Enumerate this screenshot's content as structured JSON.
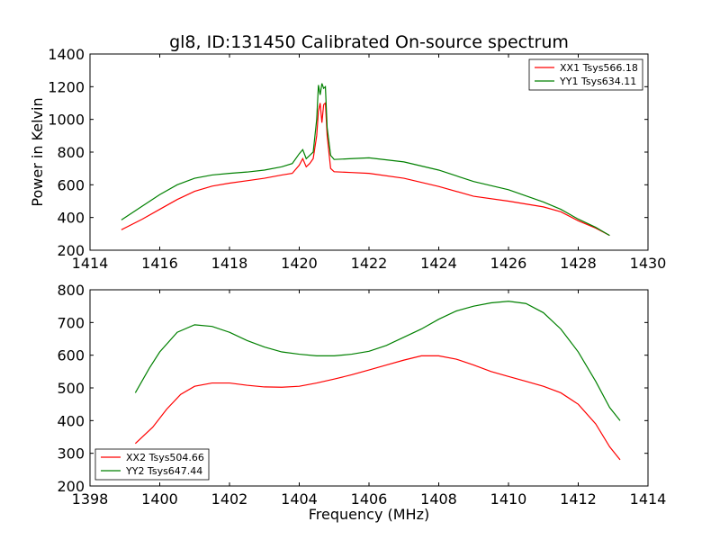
{
  "title": "gl8, ID:131450 Calibrated On-source spectrum",
  "colors": {
    "xx": "#ff0000",
    "yy": "#008000"
  },
  "chart_data": [
    {
      "type": "line",
      "ylabel": "Power in Kelvin",
      "xlabel": "",
      "xlim": [
        1414,
        1430
      ],
      "ylim": [
        200,
        1400
      ],
      "xticks": [
        1414,
        1416,
        1418,
        1420,
        1422,
        1424,
        1426,
        1428,
        1430
      ],
      "yticks": [
        200,
        400,
        600,
        800,
        1000,
        1200,
        1400
      ],
      "legend_position": "top-right",
      "series": [
        {
          "name": "XX1 Tsys566.18",
          "color": "#ff0000",
          "points": [
            [
              1414.9,
              325
            ],
            [
              1415.5,
              390
            ],
            [
              1416.0,
              450
            ],
            [
              1416.5,
              510
            ],
            [
              1417.0,
              560
            ],
            [
              1417.5,
              592
            ],
            [
              1418.0,
              610
            ],
            [
              1418.5,
              625
            ],
            [
              1419.0,
              640
            ],
            [
              1419.5,
              660
            ],
            [
              1419.8,
              670
            ],
            [
              1420.0,
              720
            ],
            [
              1420.1,
              760
            ],
            [
              1420.2,
              710
            ],
            [
              1420.3,
              730
            ],
            [
              1420.4,
              760
            ],
            [
              1420.5,
              900
            ],
            [
              1420.55,
              1050
            ],
            [
              1420.6,
              1100
            ],
            [
              1420.65,
              980
            ],
            [
              1420.7,
              1090
            ],
            [
              1420.75,
              1100
            ],
            [
              1420.8,
              900
            ],
            [
              1420.9,
              700
            ],
            [
              1421.0,
              680
            ],
            [
              1421.5,
              675
            ],
            [
              1422.0,
              670
            ],
            [
              1423.0,
              640
            ],
            [
              1424.0,
              590
            ],
            [
              1425.0,
              530
            ],
            [
              1426.0,
              500
            ],
            [
              1427.0,
              465
            ],
            [
              1427.5,
              435
            ],
            [
              1428.0,
              380
            ],
            [
              1428.5,
              335
            ],
            [
              1428.9,
              290
            ]
          ]
        },
        {
          "name": "YY1 Tsys634.11",
          "color": "#008000",
          "points": [
            [
              1414.9,
              385
            ],
            [
              1415.5,
              470
            ],
            [
              1416.0,
              540
            ],
            [
              1416.5,
              600
            ],
            [
              1417.0,
              640
            ],
            [
              1417.5,
              660
            ],
            [
              1418.0,
              670
            ],
            [
              1418.5,
              678
            ],
            [
              1419.0,
              690
            ],
            [
              1419.5,
              710
            ],
            [
              1419.8,
              730
            ],
            [
              1420.0,
              790
            ],
            [
              1420.1,
              815
            ],
            [
              1420.2,
              760
            ],
            [
              1420.3,
              780
            ],
            [
              1420.4,
              800
            ],
            [
              1420.5,
              1000
            ],
            [
              1420.55,
              1210
            ],
            [
              1420.6,
              1150
            ],
            [
              1420.65,
              1220
            ],
            [
              1420.7,
              1190
            ],
            [
              1420.75,
              1200
            ],
            [
              1420.8,
              950
            ],
            [
              1420.9,
              780
            ],
            [
              1421.0,
              755
            ],
            [
              1421.5,
              760
            ],
            [
              1422.0,
              765
            ],
            [
              1423.0,
              740
            ],
            [
              1424.0,
              690
            ],
            [
              1425.0,
              620
            ],
            [
              1426.0,
              570
            ],
            [
              1427.0,
              495
            ],
            [
              1427.5,
              450
            ],
            [
              1428.0,
              390
            ],
            [
              1428.5,
              340
            ],
            [
              1428.9,
              290
            ]
          ]
        }
      ]
    },
    {
      "type": "line",
      "ylabel": "",
      "xlabel": "Frequency (MHz)",
      "xlim": [
        1398,
        1414
      ],
      "ylim": [
        200,
        800
      ],
      "xticks": [
        1398,
        1400,
        1402,
        1404,
        1406,
        1408,
        1410,
        1412,
        1414
      ],
      "yticks": [
        200,
        300,
        400,
        500,
        600,
        700,
        800
      ],
      "legend_position": "bottom-left",
      "series": [
        {
          "name": "XX2 Tsys504.66",
          "color": "#ff0000",
          "points": [
            [
              1399.3,
              330
            ],
            [
              1399.8,
              380
            ],
            [
              1400.2,
              435
            ],
            [
              1400.6,
              480
            ],
            [
              1401.0,
              505
            ],
            [
              1401.5,
              515
            ],
            [
              1402.0,
              515
            ],
            [
              1402.5,
              508
            ],
            [
              1403.0,
              503
            ],
            [
              1403.5,
              502
            ],
            [
              1404.0,
              505
            ],
            [
              1404.5,
              515
            ],
            [
              1405.0,
              527
            ],
            [
              1405.5,
              540
            ],
            [
              1406.0,
              555
            ],
            [
              1406.5,
              570
            ],
            [
              1407.0,
              585
            ],
            [
              1407.5,
              598
            ],
            [
              1408.0,
              598
            ],
            [
              1408.5,
              588
            ],
            [
              1409.0,
              570
            ],
            [
              1409.5,
              550
            ],
            [
              1410.0,
              535
            ],
            [
              1410.5,
              520
            ],
            [
              1411.0,
              505
            ],
            [
              1411.5,
              485
            ],
            [
              1412.0,
              450
            ],
            [
              1412.5,
              390
            ],
            [
              1412.9,
              320
            ],
            [
              1413.2,
              280
            ]
          ]
        },
        {
          "name": "YY2 Tsys647.44",
          "color": "#008000",
          "points": [
            [
              1399.3,
              485
            ],
            [
              1399.7,
              560
            ],
            [
              1400.0,
              610
            ],
            [
              1400.5,
              670
            ],
            [
              1401.0,
              693
            ],
            [
              1401.5,
              688
            ],
            [
              1402.0,
              670
            ],
            [
              1402.5,
              645
            ],
            [
              1403.0,
              625
            ],
            [
              1403.5,
              610
            ],
            [
              1404.0,
              603
            ],
            [
              1404.5,
              598
            ],
            [
              1405.0,
              598
            ],
            [
              1405.5,
              603
            ],
            [
              1406.0,
              612
            ],
            [
              1406.5,
              630
            ],
            [
              1407.0,
              655
            ],
            [
              1407.5,
              680
            ],
            [
              1408.0,
              710
            ],
            [
              1408.5,
              735
            ],
            [
              1409.0,
              750
            ],
            [
              1409.5,
              760
            ],
            [
              1410.0,
              765
            ],
            [
              1410.5,
              758
            ],
            [
              1411.0,
              730
            ],
            [
              1411.5,
              680
            ],
            [
              1412.0,
              610
            ],
            [
              1412.5,
              520
            ],
            [
              1412.9,
              440
            ],
            [
              1413.2,
              400
            ]
          ]
        }
      ]
    }
  ]
}
